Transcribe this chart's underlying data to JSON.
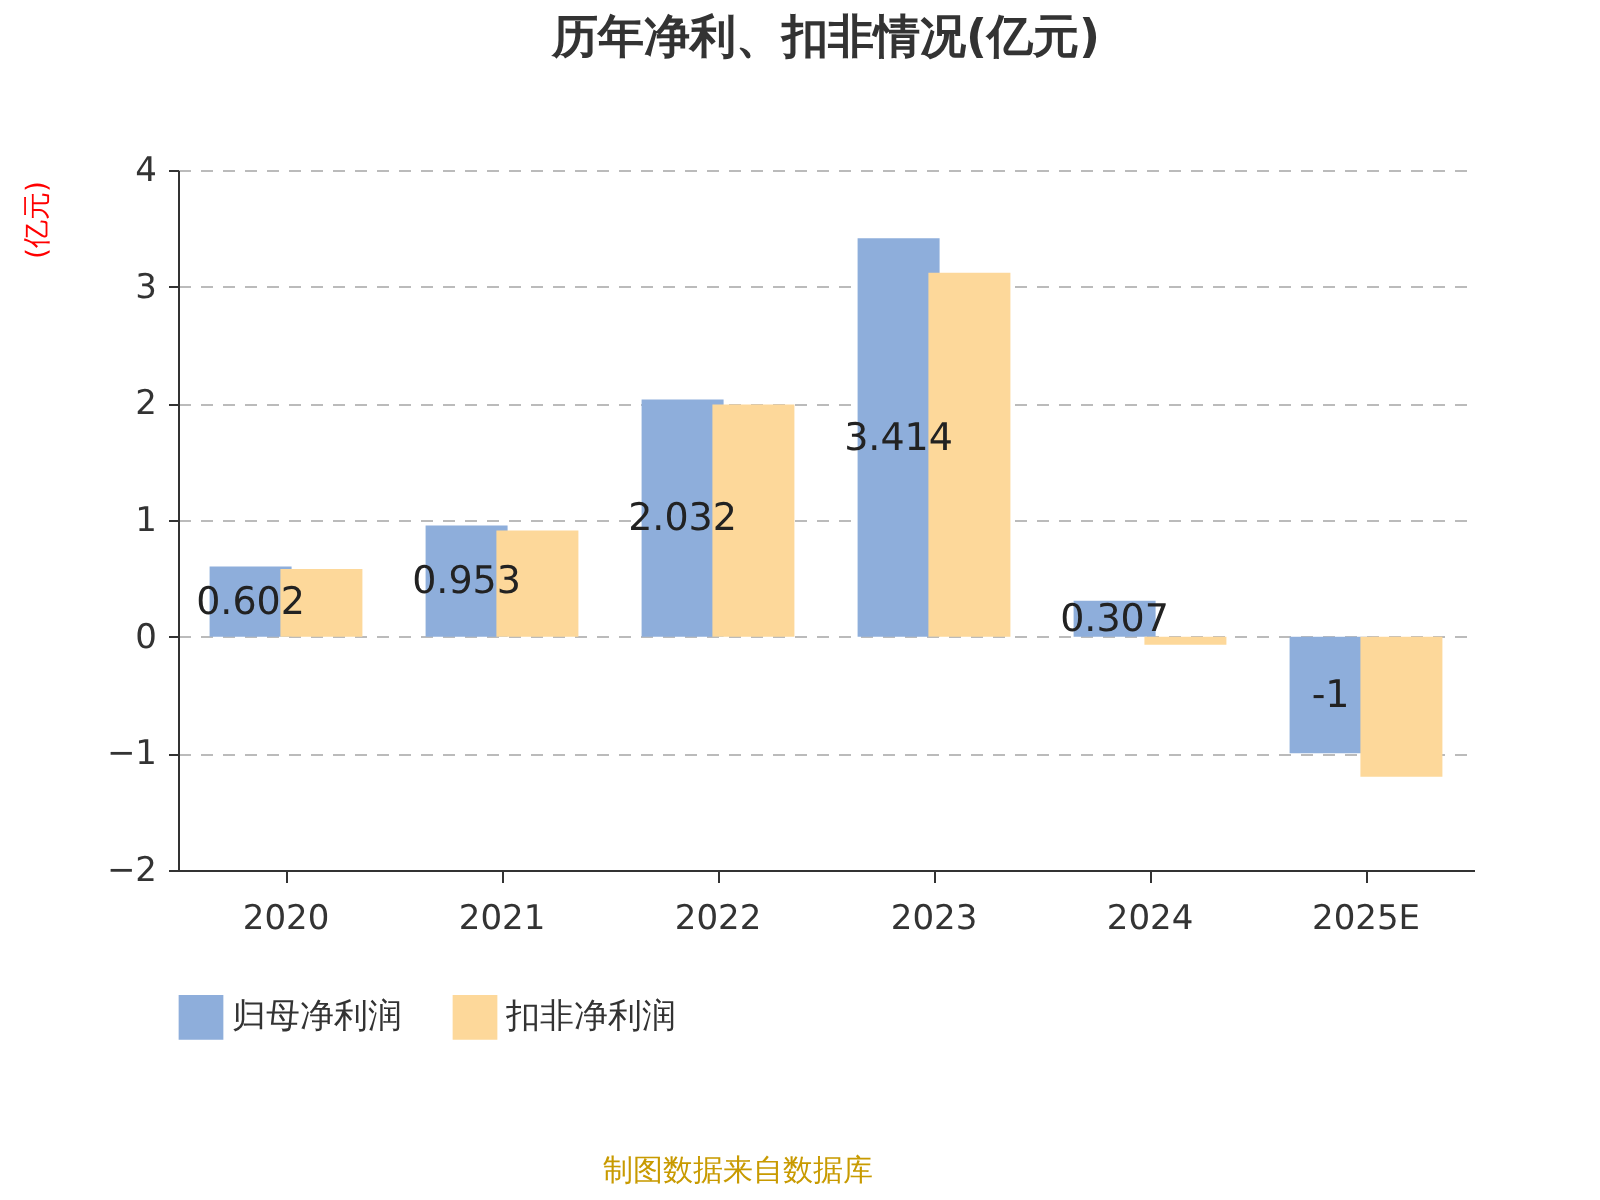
{
  "chart_data": {
    "type": "bar",
    "title": "历年净利、扣非情况(亿元)",
    "ylabel": "(亿元)",
    "categories": [
      "2020",
      "2021",
      "2022",
      "2023",
      "2024",
      "2025E"
    ],
    "series": [
      {
        "name": "归母净利润",
        "color": "#8eaedb",
        "values": [
          0.602,
          0.953,
          2.032,
          3.414,
          0.307,
          -1
        ],
        "value_labels": [
          "0.602",
          "0.953",
          "2.032",
          "3.414",
          "0.307",
          "-1"
        ]
      },
      {
        "name": "扣非净利润",
        "color": "#fdd89a",
        "values": [
          0.58,
          0.91,
          1.99,
          3.12,
          -0.07,
          -1.2
        ]
      }
    ],
    "ylim": [
      -2,
      4
    ],
    "yticks": [
      -2,
      -1,
      0,
      1,
      2,
      3,
      4
    ],
    "grid": "y",
    "legend": "bottom",
    "annotations": [
      "制图数据来自数据库"
    ]
  }
}
